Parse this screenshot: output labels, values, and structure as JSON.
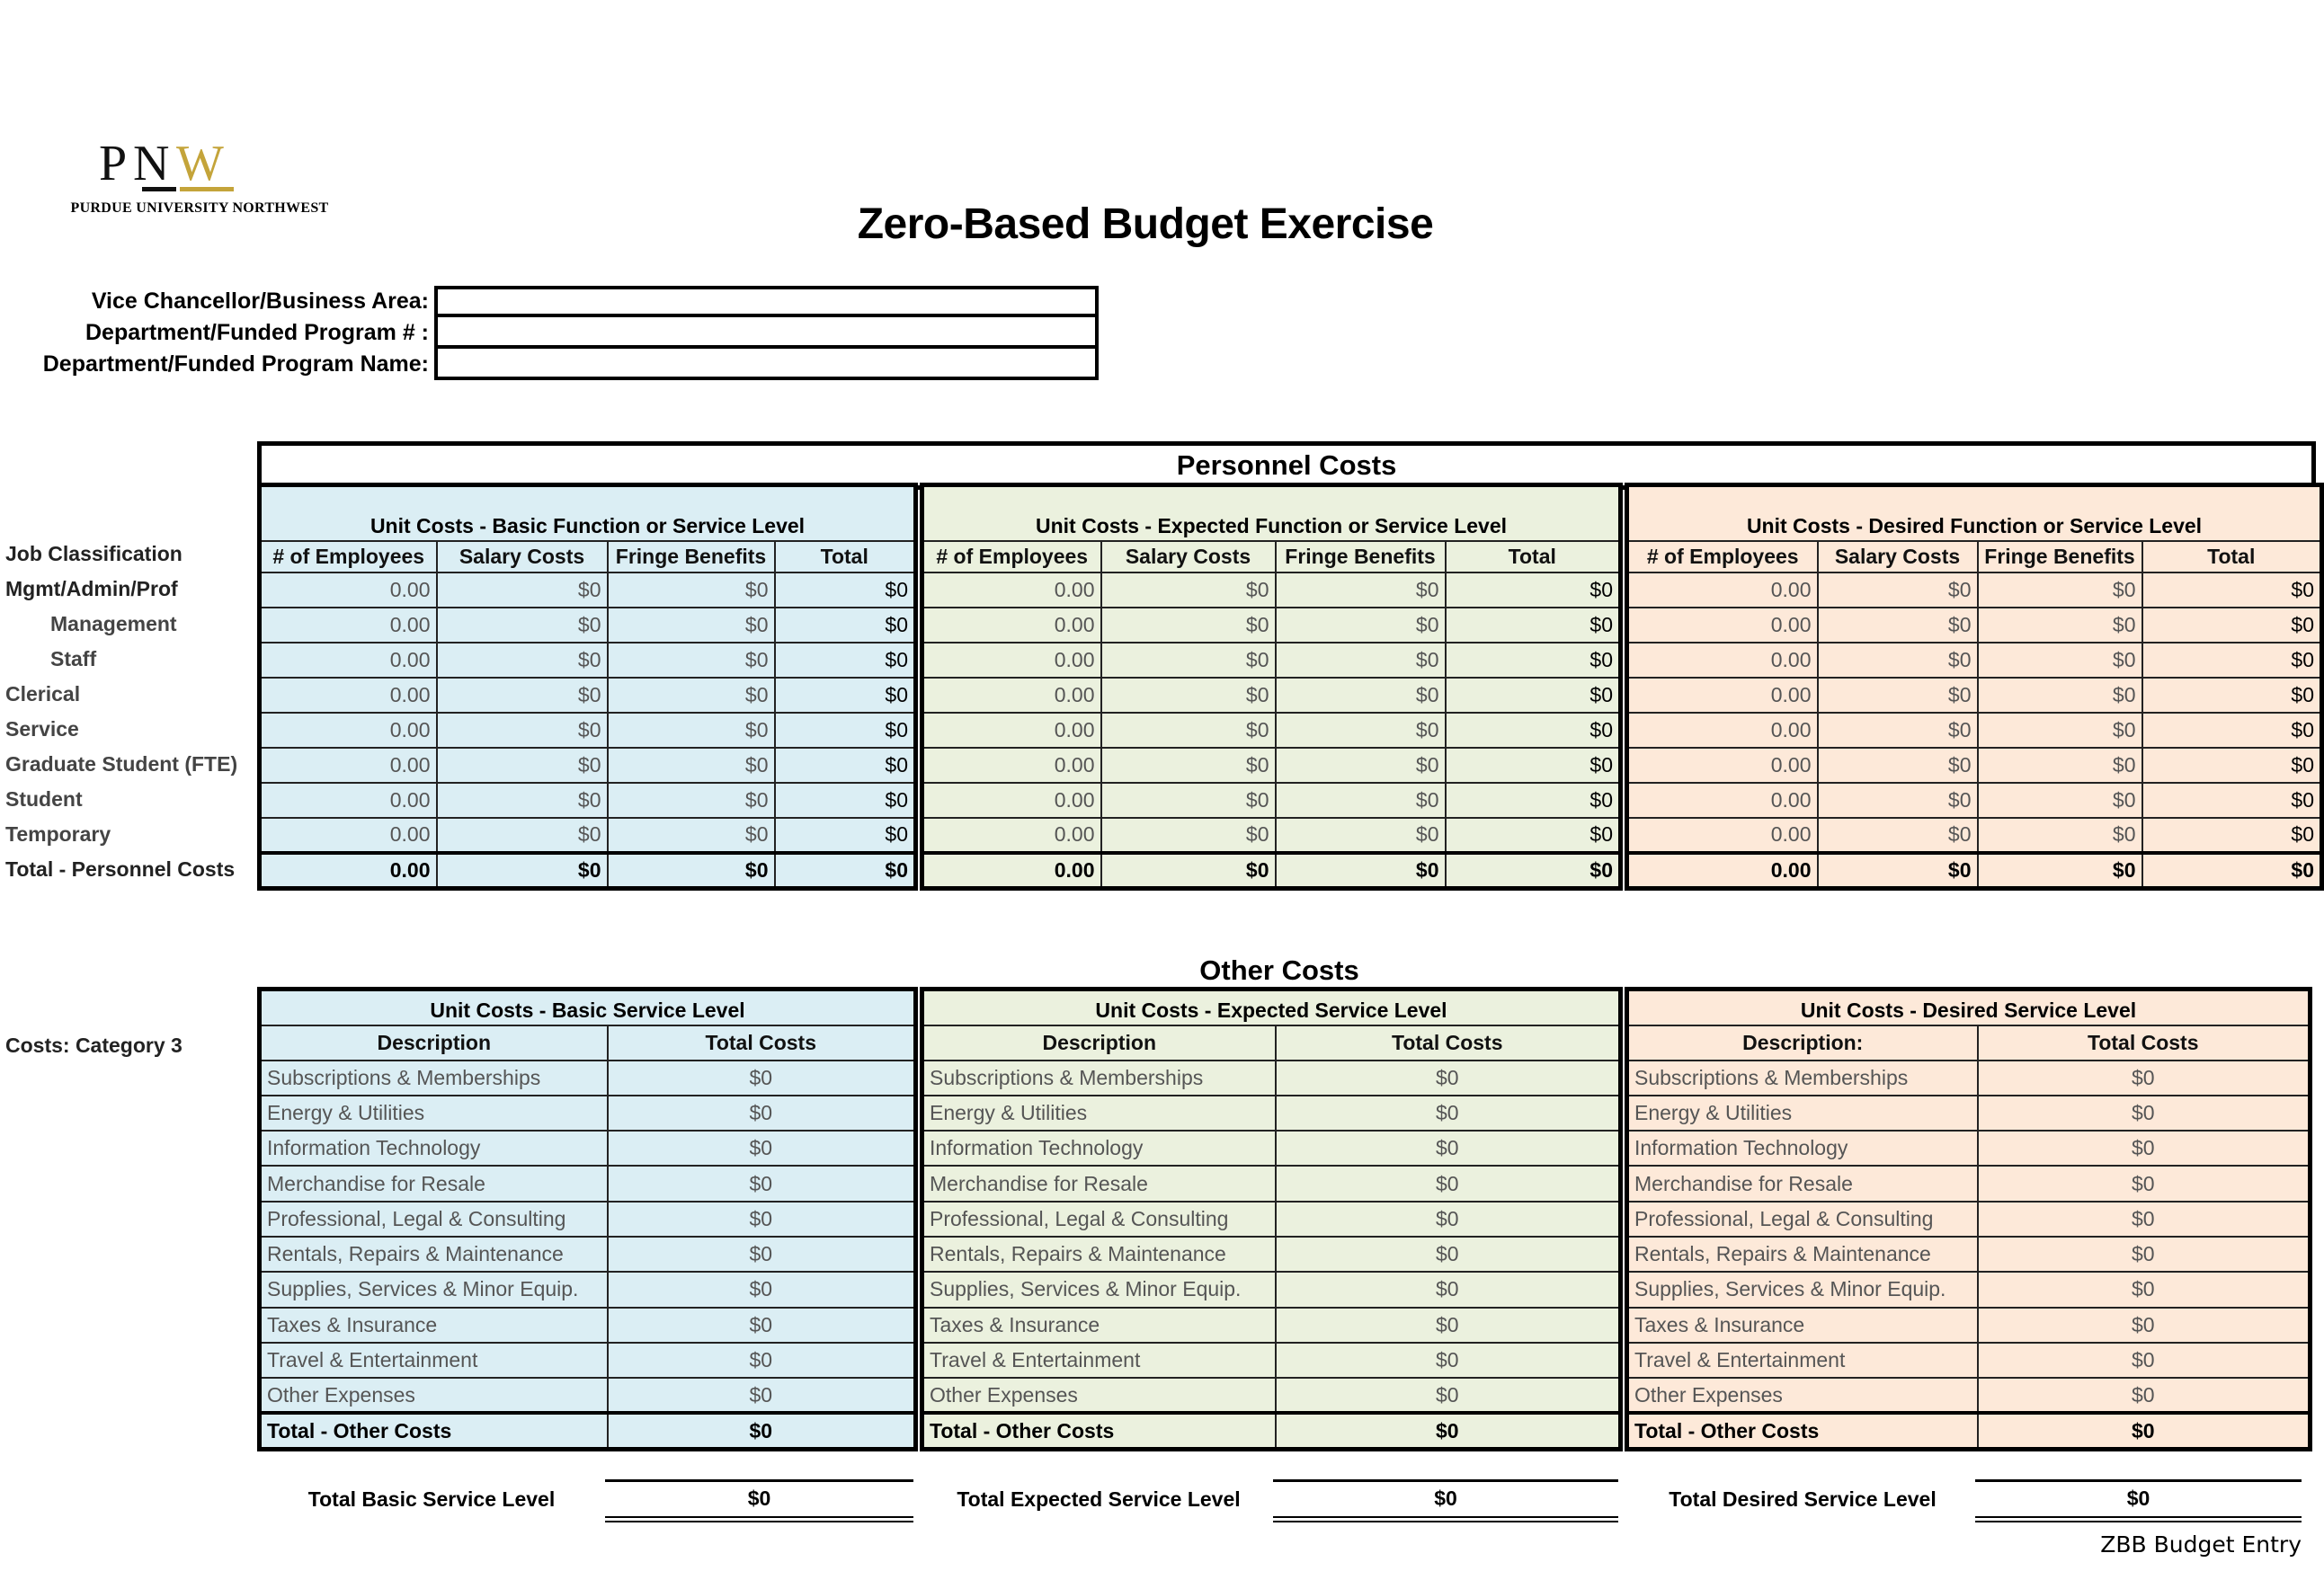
{
  "logo": {
    "mark": "PNW",
    "name": "PURDUE UNIVERSITY NORTHWEST",
    "gold": "#c4a43a"
  },
  "title": "Zero-Based Budget Exercise",
  "info_fields": [
    {
      "label": "Vice Chancellor/Business Area:",
      "value": ""
    },
    {
      "label": "Department/Funded Program # :",
      "value": ""
    },
    {
      "label": "Department/Funded Program Name:",
      "value": ""
    }
  ],
  "colors": {
    "basic": "#dbeef4",
    "expected": "#ebf1de",
    "desired": "#fde9d9"
  },
  "personnel": {
    "title": "Personnel Costs",
    "row_header": "Job Classification",
    "row_labels": [
      "Mgmt/Admin/Prof",
      "Management",
      "Staff",
      "Clerical",
      "Service",
      "Graduate Student (FTE)",
      "Student",
      "Temporary",
      "Total - Personnel Costs"
    ],
    "blocks": [
      {
        "title": "Unit Costs - Basic Function or Service Level",
        "headers": [
          "# of Employees",
          "Salary Costs",
          "Fringe Benefits",
          "Total"
        ],
        "rows": [
          [
            "0.00",
            "$0",
            "$0",
            "$0"
          ],
          [
            "0.00",
            "$0",
            "$0",
            "$0"
          ],
          [
            "0.00",
            "$0",
            "$0",
            "$0"
          ],
          [
            "0.00",
            "$0",
            "$0",
            "$0"
          ],
          [
            "0.00",
            "$0",
            "$0",
            "$0"
          ],
          [
            "0.00",
            "$0",
            "$0",
            "$0"
          ],
          [
            "0.00",
            "$0",
            "$0",
            "$0"
          ],
          [
            "0.00",
            "$0",
            "$0",
            "$0"
          ]
        ],
        "totals": [
          "0.00",
          "$0",
          "$0",
          "$0"
        ]
      },
      {
        "title": "Unit Costs - Expected Function or Service Level",
        "headers": [
          "# of Employees",
          "Salary Costs",
          "Fringe Benefits",
          "Total"
        ],
        "rows": [
          [
            "0.00",
            "$0",
            "$0",
            "$0"
          ],
          [
            "0.00",
            "$0",
            "$0",
            "$0"
          ],
          [
            "0.00",
            "$0",
            "$0",
            "$0"
          ],
          [
            "0.00",
            "$0",
            "$0",
            "$0"
          ],
          [
            "0.00",
            "$0",
            "$0",
            "$0"
          ],
          [
            "0.00",
            "$0",
            "$0",
            "$0"
          ],
          [
            "0.00",
            "$0",
            "$0",
            "$0"
          ],
          [
            "0.00",
            "$0",
            "$0",
            "$0"
          ]
        ],
        "totals": [
          "0.00",
          "$0",
          "$0",
          "$0"
        ]
      },
      {
        "title": "Unit Costs - Desired Function or Service Level",
        "headers": [
          "# of Employees",
          "Salary Costs",
          "Fringe Benefits",
          "Total"
        ],
        "rows": [
          [
            "0.00",
            "$0",
            "$0",
            "$0"
          ],
          [
            "0.00",
            "$0",
            "$0",
            "$0"
          ],
          [
            "0.00",
            "$0",
            "$0",
            "$0"
          ],
          [
            "0.00",
            "$0",
            "$0",
            "$0"
          ],
          [
            "0.00",
            "$0",
            "$0",
            "$0"
          ],
          [
            "0.00",
            "$0",
            "$0",
            "$0"
          ],
          [
            "0.00",
            "$0",
            "$0",
            "$0"
          ],
          [
            "0.00",
            "$0",
            "$0",
            "$0"
          ]
        ],
        "totals": [
          "0.00",
          "$0",
          "$0",
          "$0"
        ]
      }
    ]
  },
  "other": {
    "title": "Other Costs",
    "row_header": "Costs: Category 3",
    "blocks": [
      {
        "title": "Unit Costs - Basic Service Level",
        "headers": [
          "Description",
          "Total Costs"
        ],
        "items": [
          [
            "Subscriptions & Memberships",
            "$0"
          ],
          [
            "Energy & Utilities",
            "$0"
          ],
          [
            "Information Technology",
            "$0"
          ],
          [
            "Merchandise for Resale",
            "$0"
          ],
          [
            "Professional, Legal & Consulting",
            "$0"
          ],
          [
            "Rentals, Repairs & Maintenance",
            "$0"
          ],
          [
            "Supplies, Services & Minor Equip.",
            "$0"
          ],
          [
            "Taxes & Insurance",
            "$0"
          ],
          [
            "Travel & Entertainment",
            "$0"
          ],
          [
            "Other Expenses",
            "$0"
          ]
        ],
        "total": [
          "Total - Other Costs",
          "$0"
        ]
      },
      {
        "title": "Unit Costs - Expected Service Level",
        "headers": [
          "Description",
          "Total Costs"
        ],
        "items": [
          [
            "Subscriptions & Memberships",
            "$0"
          ],
          [
            "Energy & Utilities",
            "$0"
          ],
          [
            "Information Technology",
            "$0"
          ],
          [
            "Merchandise for Resale",
            "$0"
          ],
          [
            "Professional, Legal & Consulting",
            "$0"
          ],
          [
            "Rentals, Repairs & Maintenance",
            "$0"
          ],
          [
            "Supplies, Services & Minor Equip.",
            "$0"
          ],
          [
            "Taxes & Insurance",
            "$0"
          ],
          [
            "Travel & Entertainment",
            "$0"
          ],
          [
            "Other Expenses",
            "$0"
          ]
        ],
        "total": [
          "Total - Other Costs",
          "$0"
        ]
      },
      {
        "title": "Unit Costs - Desired Service Level",
        "headers": [
          "Description:",
          "Total Costs"
        ],
        "items": [
          [
            "Subscriptions & Memberships",
            "$0"
          ],
          [
            "Energy & Utilities",
            "$0"
          ],
          [
            "Information Technology",
            "$0"
          ],
          [
            "Merchandise for Resale",
            "$0"
          ],
          [
            "Professional, Legal & Consulting",
            "$0"
          ],
          [
            "Rentals, Repairs & Maintenance",
            "$0"
          ],
          [
            "Supplies, Services & Minor Equip.",
            "$0"
          ],
          [
            "Taxes & Insurance",
            "$0"
          ],
          [
            "Travel & Entertainment",
            "$0"
          ],
          [
            "Other Expenses",
            "$0"
          ]
        ],
        "total": [
          "Total - Other Costs",
          "$0"
        ]
      }
    ]
  },
  "summary": [
    {
      "label": "Total Basic Service Level",
      "value": "$0"
    },
    {
      "label": "Total Expected Service Level",
      "value": "$0"
    },
    {
      "label": "Total Desired Service Level",
      "value": "$0"
    }
  ],
  "footer": "ZBB Budget Entry"
}
